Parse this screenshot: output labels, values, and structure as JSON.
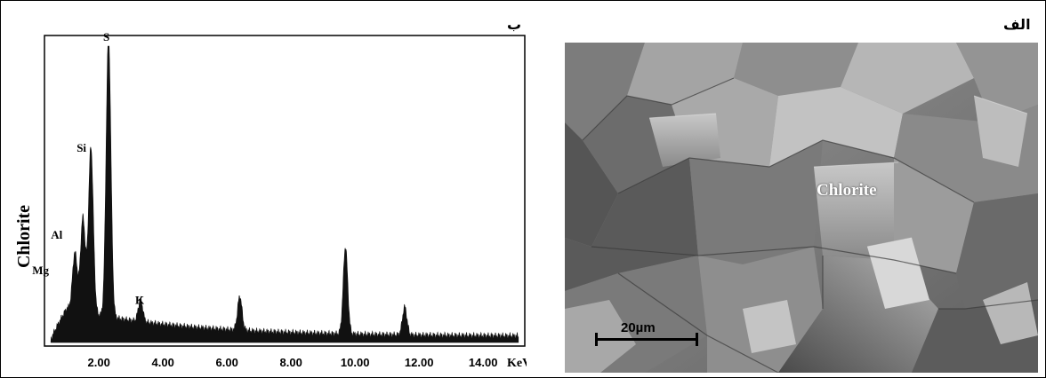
{
  "panels": {
    "b_label": "ب",
    "alef_label": "الف"
  },
  "chart_data": {
    "type": "line",
    "title": "",
    "xlabel": "KeV",
    "ylabel": "Chlorite",
    "xlim": [
      0.3,
      15.3
    ],
    "ylim": [
      0,
      100
    ],
    "x_ticks": [
      "2.00",
      "4.00",
      "6.00",
      "8.00",
      "10.00",
      "12.00",
      "14.00"
    ],
    "x_tick_values": [
      2,
      4,
      6,
      8,
      10,
      12,
      14
    ],
    "peaks": [
      {
        "label": "Mg",
        "x": 1.25,
        "y": 26
      },
      {
        "label": "Al",
        "x": 1.5,
        "y": 38
      },
      {
        "label": "Si",
        "x": 1.75,
        "y": 62
      },
      {
        "label": "S",
        "x": 2.3,
        "y": 100
      },
      {
        "label": "K",
        "x": 3.3,
        "y": 10
      },
      {
        "label": "",
        "x": 6.4,
        "y": 14
      },
      {
        "label": "",
        "x": 9.7,
        "y": 32
      },
      {
        "label": "",
        "x": 11.55,
        "y": 12
      }
    ],
    "element_labels": [
      "S",
      "Si",
      "Al",
      "Mg",
      "K"
    ]
  },
  "sem_image": {
    "annotation": "Chlorite",
    "scale_bar": "20µm"
  }
}
